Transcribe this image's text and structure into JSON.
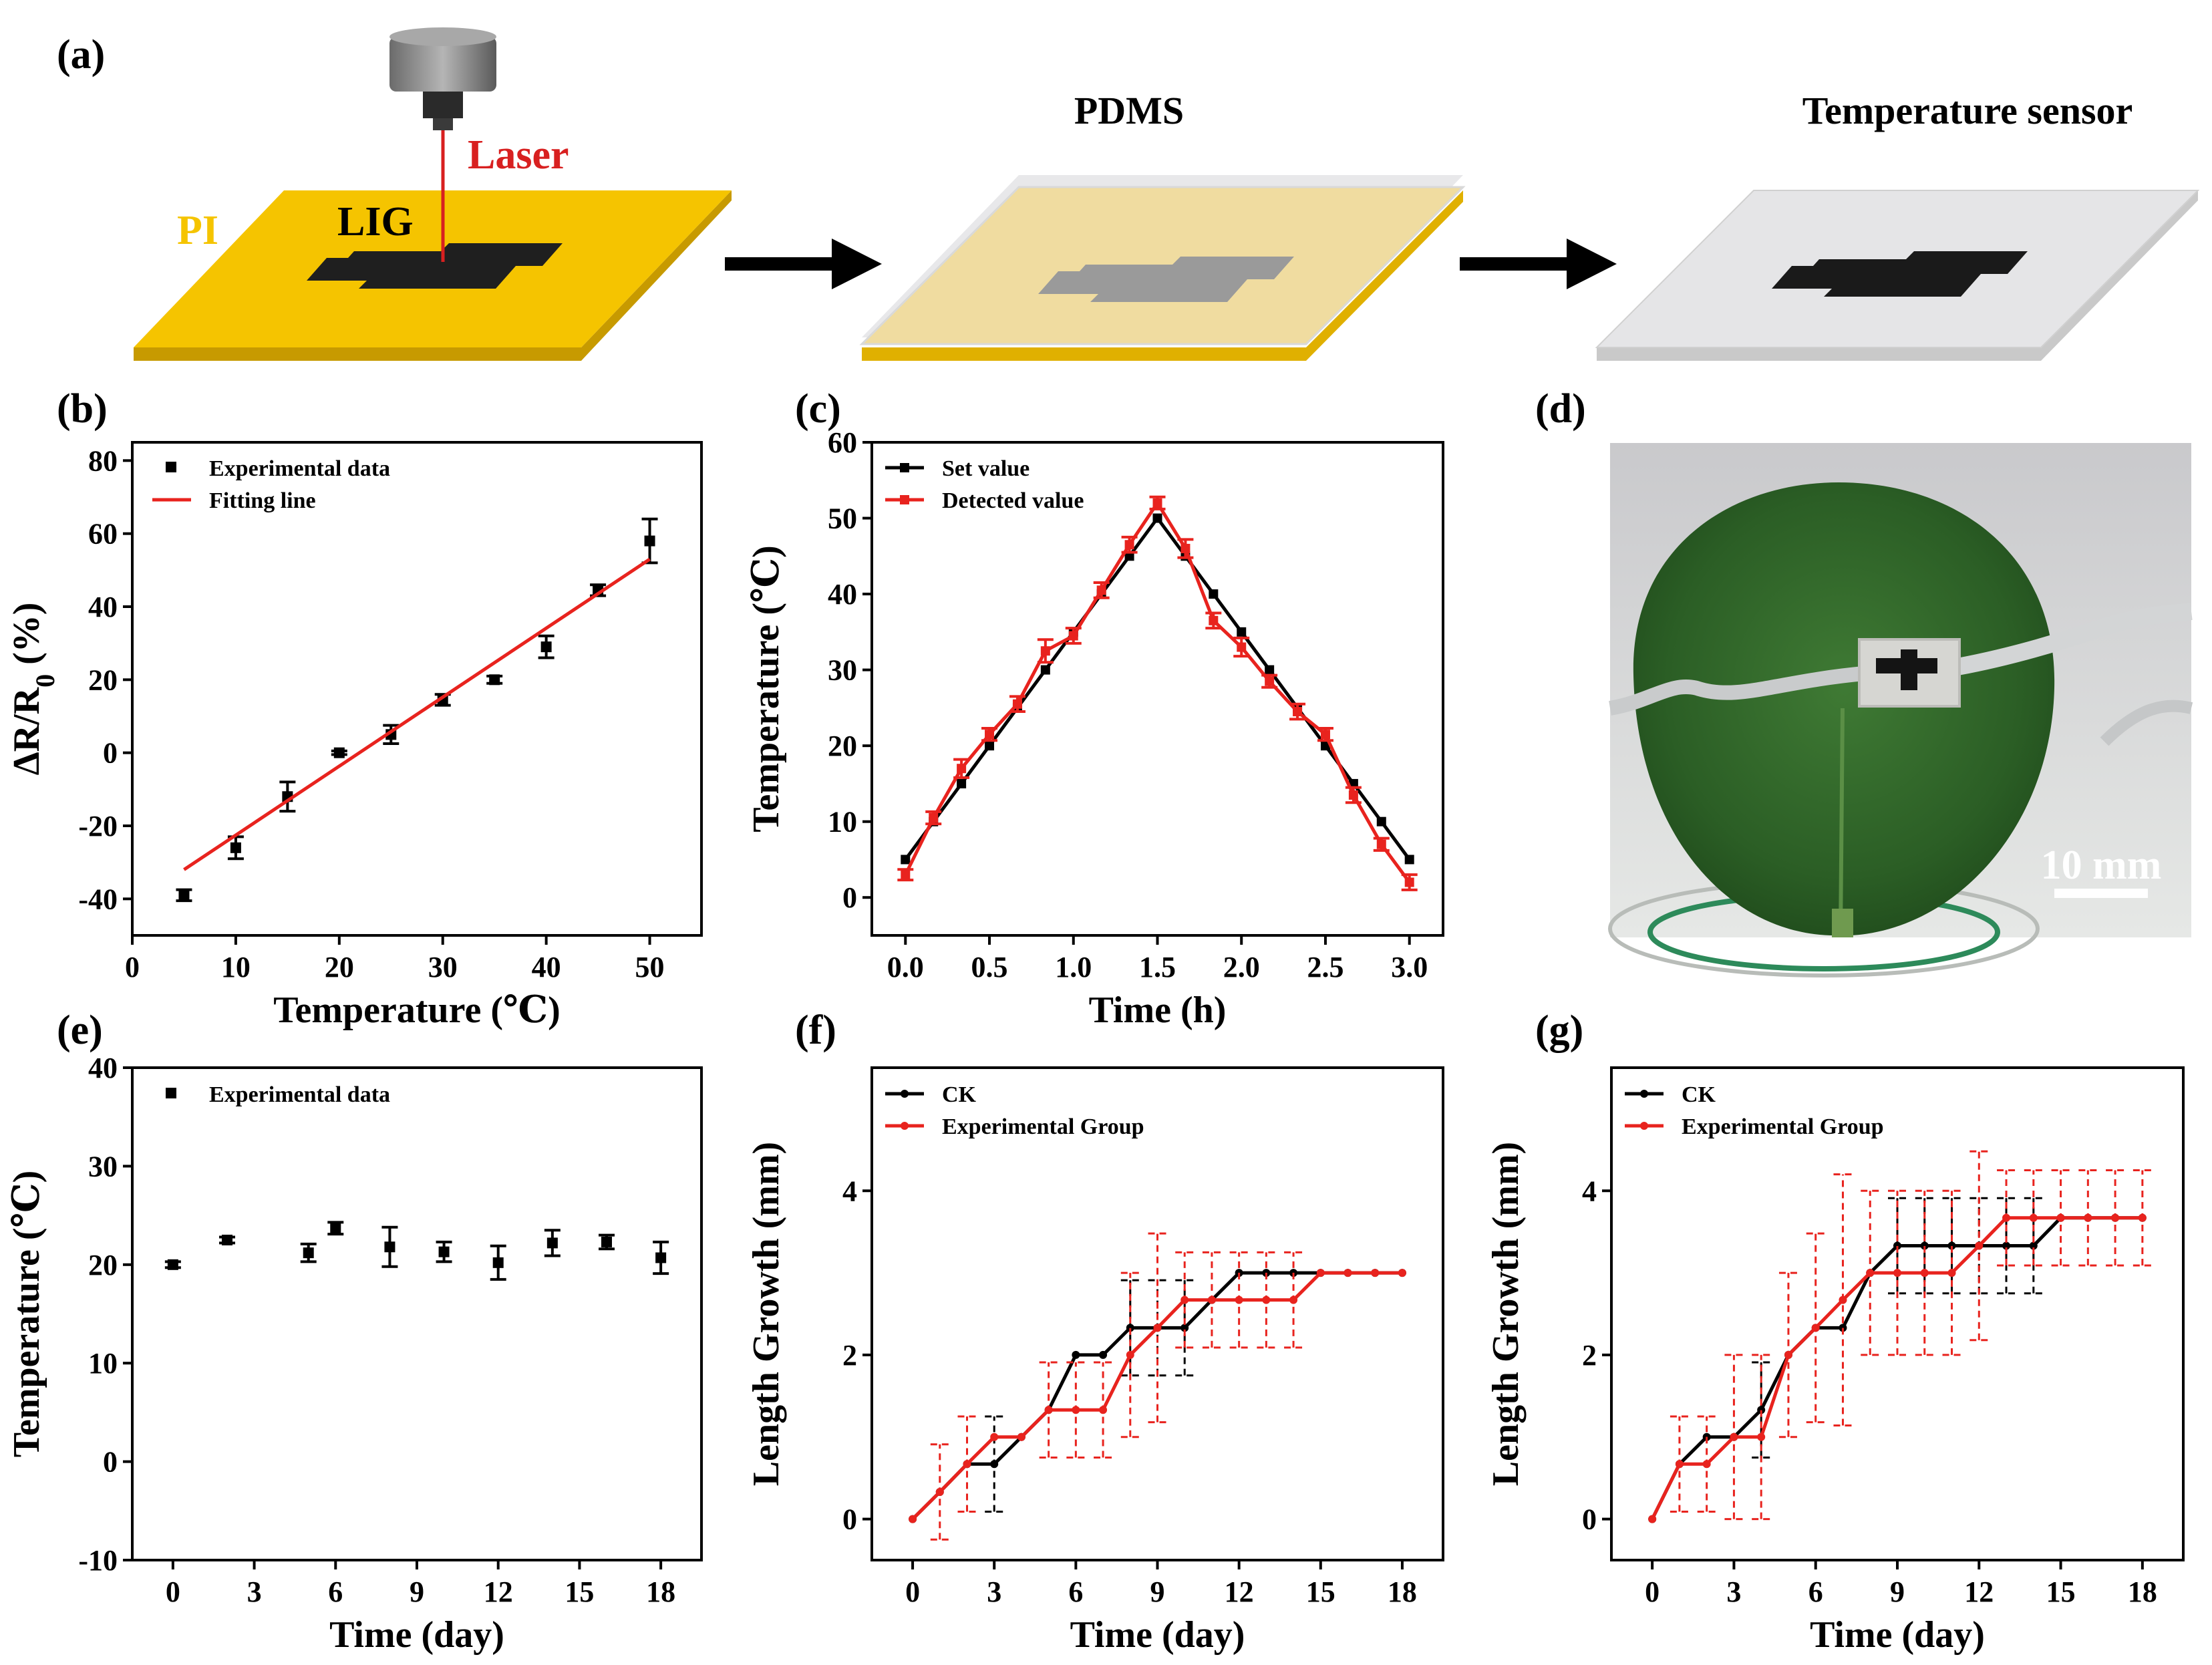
{
  "panel_labels": {
    "a": "(a)",
    "b": "(b)",
    "c": "(c)",
    "d": "(d)",
    "e": "(e)",
    "f": "(f)",
    "g": "(g)"
  },
  "schematic": {
    "laser_label": "Laser",
    "lig_label": "LIG",
    "pi_label": "PI",
    "pdms_title": "PDMS",
    "sensor_title": "Temperature sensor",
    "colors": {
      "pi": "#F5C400",
      "laser": "#D82020",
      "lig": "#1f1f1f"
    }
  },
  "photo": {
    "scale_label": "10 mm"
  },
  "chart_data": [
    {
      "id": "b",
      "type": "scatter",
      "xlabel": "Temperature (℃)",
      "ylabel": "ΔR/R0 (%)",
      "xlim": [
        0,
        55
      ],
      "ylim": [
        -50,
        85
      ],
      "xticks": [
        0,
        10,
        20,
        30,
        40,
        50
      ],
      "yticks": [
        -40,
        -20,
        0,
        20,
        40,
        60,
        80
      ],
      "legend": {
        "position": "top-left",
        "entries": [
          "Experimental data",
          "Fitting line"
        ]
      },
      "series": [
        {
          "name": "Experimental data",
          "marker": "square",
          "color": "#000000",
          "x": [
            5,
            10,
            15,
            20,
            25,
            30,
            35,
            40,
            45,
            50
          ],
          "y": [
            -39,
            -26,
            -12,
            0,
            5,
            14.5,
            20,
            29,
            44.5,
            58
          ],
          "err": [
            1.5,
            3,
            4,
            0.5,
            2.5,
            1.5,
            1,
            3,
            1.5,
            6
          ]
        },
        {
          "name": "Fitting line",
          "type": "line",
          "color": "#E8231E",
          "x": [
            5,
            50
          ],
          "y": [
            -32,
            53
          ]
        }
      ]
    },
    {
      "id": "c",
      "type": "line",
      "xlabel": "Time (h)",
      "ylabel": "Temperature (℃)",
      "xlim": [
        -0.2,
        3.2
      ],
      "ylim": [
        -5,
        60
      ],
      "xticks": [
        0.0,
        0.5,
        1.0,
        1.5,
        2.0,
        2.5,
        3.0
      ],
      "yticks": [
        0,
        10,
        20,
        30,
        40,
        50,
        60
      ],
      "legend": {
        "position": "top-left",
        "entries": [
          "Set value",
          "Detected value"
        ]
      },
      "series": [
        {
          "name": "Set value",
          "color": "#000000",
          "marker": "square",
          "x": [
            0,
            0.1667,
            0.3333,
            0.5,
            0.6667,
            0.8333,
            1.0,
            1.1667,
            1.3333,
            1.5,
            1.6667,
            1.8333,
            2.0,
            2.1667,
            2.3333,
            2.5,
            2.6667,
            2.8333,
            3.0
          ],
          "y": [
            5,
            10,
            15,
            20,
            25,
            30,
            35,
            40,
            45,
            50,
            45,
            40,
            35,
            30,
            25,
            20,
            15,
            10,
            5
          ]
        },
        {
          "name": "Detected value",
          "color": "#E8231E",
          "marker": "square",
          "x": [
            0,
            0.1667,
            0.3333,
            0.5,
            0.6667,
            0.8333,
            1.0,
            1.1667,
            1.3333,
            1.5,
            1.6667,
            1.8333,
            2.0,
            2.1667,
            2.3333,
            2.5,
            2.6667,
            2.8333,
            3.0
          ],
          "y": [
            3,
            10.5,
            17,
            21.5,
            25.5,
            32.5,
            34.5,
            40.5,
            46.5,
            52,
            46,
            36.5,
            33,
            28.5,
            24.5,
            21.5,
            13.5,
            7,
            2
          ],
          "err": [
            0.7,
            0.8,
            1.2,
            0.8,
            1.0,
            1.5,
            1.0,
            1.0,
            1.0,
            0.8,
            1.2,
            1.0,
            1.2,
            0.8,
            1.0,
            0.8,
            1.0,
            0.8,
            1.0
          ]
        }
      ]
    },
    {
      "id": "e",
      "type": "scatter",
      "xlabel": "Time (day)",
      "ylabel": "Temperature (℃)",
      "xlim": [
        -1.5,
        19.5
      ],
      "ylim": [
        -10,
        40
      ],
      "xticks": [
        0,
        3,
        6,
        9,
        12,
        15,
        18
      ],
      "yticks": [
        -10,
        0,
        10,
        20,
        30,
        40
      ],
      "legend": {
        "position": "top-left",
        "entries": [
          "Experimental data"
        ]
      },
      "series": [
        {
          "name": "Experimental data",
          "marker": "square",
          "color": "#000000",
          "x": [
            0,
            2,
            5,
            6,
            8,
            10,
            12,
            14,
            16,
            18
          ],
          "y": [
            20,
            22.5,
            21.2,
            23.7,
            21.8,
            21.3,
            20.2,
            22.2,
            22.3,
            20.7
          ],
          "err": [
            0.3,
            0.3,
            0.9,
            0.6,
            2.0,
            1.0,
            1.7,
            1.3,
            0.7,
            1.6
          ]
        }
      ]
    },
    {
      "id": "f",
      "type": "line",
      "xlabel": "Time (day)",
      "ylabel": "Length Growth (mm)",
      "xlim": [
        -1.5,
        19.5
      ],
      "ylim": [
        -0.5,
        5.5
      ],
      "xticks": [
        0,
        3,
        6,
        9,
        12,
        15,
        18
      ],
      "yticks": [
        0,
        2,
        4
      ],
      "legend": {
        "position": "top-left",
        "entries": [
          "CK",
          "Experimental Group"
        ]
      },
      "series": [
        {
          "name": "CK",
          "color": "#000000",
          "x": [
            0,
            1,
            2,
            3,
            4,
            5,
            6,
            7,
            8,
            9,
            10,
            11,
            12,
            13,
            14,
            15,
            16,
            17,
            18
          ],
          "y": [
            0,
            0.33,
            0.67,
            0.67,
            1,
            1.33,
            2,
            2,
            2.33,
            2.33,
            2.33,
            2.67,
            3,
            3,
            3,
            3,
            3,
            3,
            3
          ],
          "err": [
            0,
            0,
            0,
            0.58,
            0,
            0,
            0,
            0,
            0.58,
            0.58,
            0.58,
            0,
            0,
            0,
            0,
            0,
            0,
            0,
            0
          ]
        },
        {
          "name": "Experimental Group",
          "color": "#E8231E",
          "x": [
            0,
            1,
            2,
            3,
            4,
            5,
            6,
            7,
            8,
            9,
            10,
            11,
            12,
            13,
            14,
            15,
            16,
            17,
            18
          ],
          "y": [
            0,
            0.33,
            0.67,
            1,
            1,
            1.33,
            1.33,
            1.33,
            2,
            2.33,
            2.67,
            2.67,
            2.67,
            2.67,
            2.67,
            3,
            3,
            3,
            3
          ],
          "err": [
            0,
            0.58,
            0.58,
            0,
            0,
            0.58,
            0.58,
            0.58,
            1.0,
            1.15,
            0.58,
            0.58,
            0.58,
            0.58,
            0.58,
            0,
            0,
            0,
            0
          ]
        }
      ]
    },
    {
      "id": "g",
      "type": "line",
      "xlabel": "Time (day)",
      "ylabel": "Length Growth (mm)",
      "xlim": [
        -1.5,
        19.5
      ],
      "ylim": [
        -0.5,
        5.5
      ],
      "xticks": [
        0,
        3,
        6,
        9,
        12,
        15,
        18
      ],
      "yticks": [
        0,
        2,
        4
      ],
      "legend": {
        "position": "top-left",
        "entries": [
          "CK",
          "Experimental Group"
        ]
      },
      "series": [
        {
          "name": "CK",
          "color": "#000000",
          "x": [
            0,
            1,
            2,
            3,
            4,
            5,
            6,
            7,
            8,
            9,
            10,
            11,
            12,
            13,
            14,
            15,
            16,
            17,
            18
          ],
          "y": [
            0,
            0.67,
            1,
            1,
            1.33,
            2,
            2.33,
            2.33,
            3,
            3.33,
            3.33,
            3.33,
            3.33,
            3.33,
            3.33,
            3.67,
            3.67,
            3.67,
            3.67
          ],
          "err": [
            0,
            0,
            0,
            0,
            0.58,
            0,
            0,
            0,
            0,
            0.58,
            0.58,
            0.58,
            0.58,
            0.58,
            0.58,
            0,
            0,
            0,
            0
          ]
        },
        {
          "name": "Experimental Group",
          "color": "#E8231E",
          "x": [
            0,
            1,
            2,
            3,
            4,
            5,
            6,
            7,
            8,
            9,
            10,
            11,
            12,
            13,
            14,
            15,
            16,
            17,
            18
          ],
          "y": [
            0,
            0.67,
            0.67,
            1,
            1,
            2,
            2.33,
            2.67,
            3,
            3,
            3,
            3,
            3.33,
            3.67,
            3.67,
            3.67,
            3.67,
            3.67,
            3.67
          ],
          "err": [
            0,
            0.58,
            0.58,
            1.0,
            1.0,
            1.0,
            1.15,
            1.53,
            1.0,
            1.0,
            1.0,
            1.0,
            1.15,
            0.58,
            0.58,
            0.58,
            0.58,
            0.58,
            0.58
          ]
        }
      ]
    }
  ]
}
